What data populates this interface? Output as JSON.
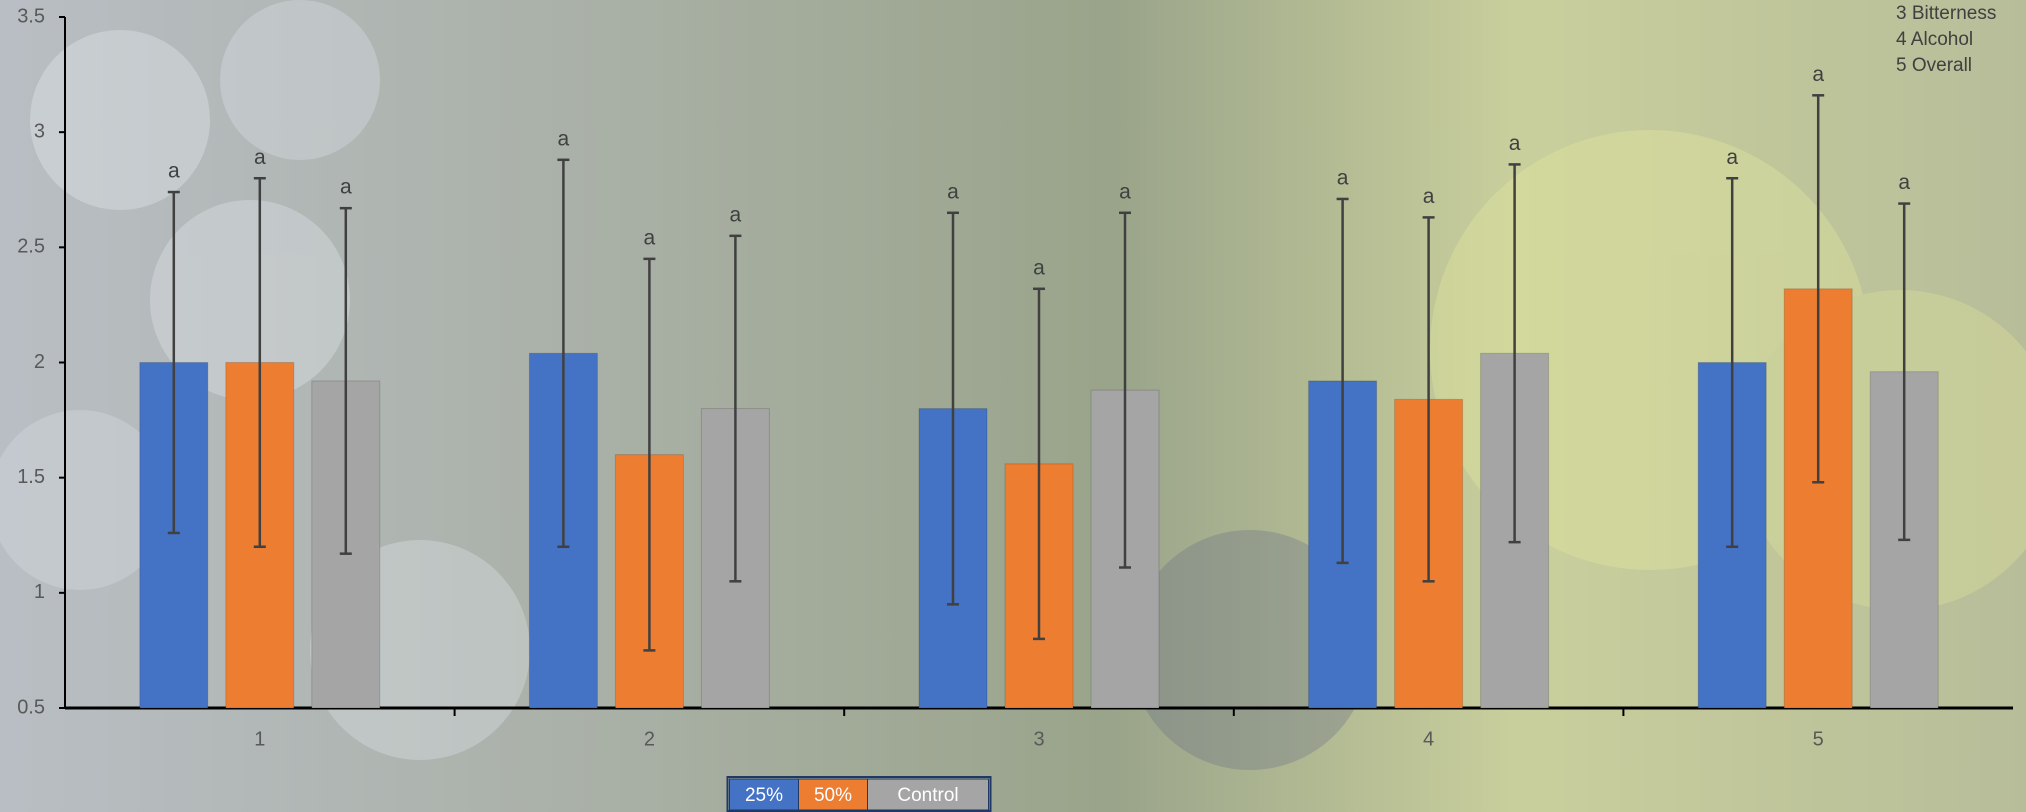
{
  "chart_data": {
    "type": "bar",
    "categories": [
      "1",
      "2",
      "3",
      "4",
      "5"
    ],
    "series": [
      {
        "name": "25%",
        "color": "#4472c4",
        "values": [
          2.0,
          2.04,
          1.8,
          1.92,
          2.0
        ],
        "errors": [
          0.74,
          0.84,
          0.85,
          0.79,
          0.8
        ],
        "letters": [
          "a",
          "a",
          "a",
          "a",
          "a"
        ]
      },
      {
        "name": "50%",
        "color": "#ed7d31",
        "values": [
          2.0,
          1.6,
          1.56,
          1.84,
          2.32
        ],
        "errors": [
          0.8,
          0.85,
          0.76,
          0.79,
          0.84
        ],
        "letters": [
          "a",
          "a",
          "a",
          "a",
          "a"
        ]
      },
      {
        "name": "Control",
        "color": "#a5a5a5",
        "values": [
          1.92,
          1.8,
          1.88,
          2.04,
          1.96
        ],
        "errors": [
          0.75,
          0.75,
          0.77,
          0.82,
          0.73
        ],
        "letters": [
          "a",
          "a",
          "a",
          "a",
          "a"
        ]
      }
    ],
    "ylim": [
      0.5,
      3.5
    ],
    "yticks": [
      0.5,
      1,
      1.5,
      2,
      2.5,
      3,
      3.5
    ],
    "annotations": [
      "3 Bitterness",
      "4 Alcohol",
      "5 Overall"
    ],
    "legend": "bottom"
  }
}
